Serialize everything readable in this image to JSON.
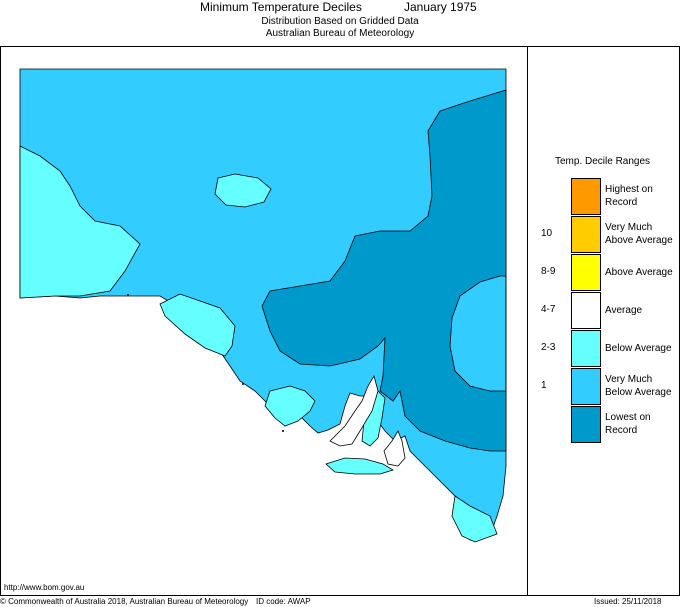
{
  "header": {
    "title": "Minimum Temperature Deciles",
    "period": "January 1975",
    "subtitle1": "Distribution Based on Gridded Data",
    "subtitle2": "Australian Bureau of Meteorology"
  },
  "legend": {
    "title": "Temp. Decile Ranges",
    "items": [
      {
        "range": "",
        "label_line1": "Highest on",
        "label_line2": "Record",
        "color": "#ff9900"
      },
      {
        "range": "10",
        "label_line1": "Very Much",
        "label_line2": "Above Average",
        "color": "#ffcc00"
      },
      {
        "range": "8-9",
        "label_line1": "Above Average",
        "label_line2": "",
        "color": "#ffff00"
      },
      {
        "range": "4-7",
        "label_line1": "Average",
        "label_line2": "",
        "color": "#ffffff"
      },
      {
        "range": "2-3",
        "label_line1": "Below Average",
        "label_line2": "",
        "color": "#66ffff"
      },
      {
        "range": "1",
        "label_line1": "Very Much",
        "label_line2": "Below Average",
        "color": "#33ccff"
      },
      {
        "range": "",
        "label_line1": "Lowest on",
        "label_line2": "Record",
        "color": "#0099cc"
      }
    ]
  },
  "map": {
    "region": "South Australia",
    "land_base_color": "#33ccff",
    "sea_color": "#ffffff",
    "zones": [
      {
        "category": "Lowest on Record",
        "color": "#0099cc"
      },
      {
        "category": "Below Average",
        "color": "#66ffff"
      }
    ]
  },
  "footer": {
    "url": "http://www.bom.gov.au",
    "copyright": "© Commonwealth of Australia 2018, Australian Bureau of Meteorology",
    "id_code": "ID code: AWAP",
    "issued": "Issued: 25/11/2018"
  }
}
